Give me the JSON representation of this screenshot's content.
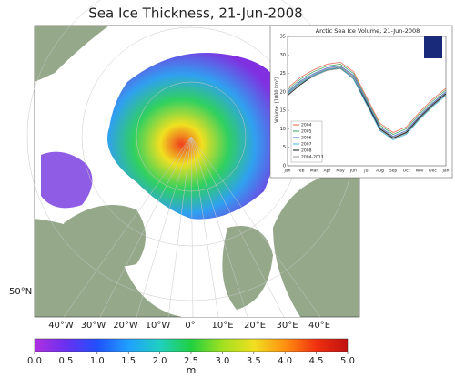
{
  "title": "Sea Ice Thickness, 21-Jun-2008",
  "map": {
    "lon_labels": [
      "40°W",
      "30°W",
      "20°W",
      "10°W",
      "0°",
      "10°E",
      "20°E",
      "30°E",
      "40°E"
    ],
    "lat_label": "50°N"
  },
  "colorbar": {
    "label": "m",
    "lim": [
      0,
      5
    ],
    "ticks": [
      {
        "value": 0,
        "label": "0.0"
      },
      {
        "value": 0.5,
        "label": "0.5"
      },
      {
        "value": 1,
        "label": "1.0"
      },
      {
        "value": 1.5,
        "label": "1.5"
      },
      {
        "value": 2,
        "label": "2.0"
      },
      {
        "value": 2.5,
        "label": "2.5"
      },
      {
        "value": 3,
        "label": "3.0"
      },
      {
        "value": 3.5,
        "label": "3.5"
      },
      {
        "value": 4,
        "label": "4.0"
      },
      {
        "value": 4.5,
        "label": "4.5"
      },
      {
        "value": 5,
        "label": "5.0"
      }
    ]
  },
  "chart_data": {
    "type": "line",
    "title": "Arctic Sea Ice Volume, 21-Jun-2008",
    "ylabel": "Volume, [1000 km³]",
    "categories": [
      "Jan",
      "Feb",
      "Mar",
      "Apr",
      "May",
      "Jun",
      "Jul",
      "Aug",
      "Sep",
      "Oct",
      "Nov",
      "Dec",
      "Jan"
    ],
    "ylim": [
      0,
      35
    ],
    "yticks": [
      0,
      5,
      10,
      15,
      20,
      25,
      30,
      35
    ],
    "legend": "lower left",
    "series": [
      {
        "name": "2004",
        "color": "#e8604c",
        "values": [
          21,
          24,
          26,
          27.5,
          28,
          25.5,
          18.5,
          11.5,
          9,
          10.5,
          14.5,
          18,
          21
        ]
      },
      {
        "name": "2005",
        "color": "#3aa05a",
        "values": [
          20.5,
          23.5,
          25.5,
          27,
          27.5,
          25,
          18,
          11,
          8.5,
          10,
          14,
          17.5,
          20.5
        ]
      },
      {
        "name": "2006",
        "color": "#3a60c8",
        "values": [
          20,
          23,
          25,
          26.5,
          27,
          24.5,
          17.5,
          10.5,
          8,
          9.5,
          13.5,
          17,
          20
        ]
      },
      {
        "name": "2007",
        "color": "#40b8d8",
        "values": [
          19.5,
          22.5,
          24.5,
          26,
          26.5,
          23.5,
          16.5,
          9.5,
          7,
          8.5,
          12.5,
          16,
          19
        ]
      },
      {
        "name": "2008",
        "color": "#111111",
        "values": [
          19,
          22,
          24.5,
          26,
          26.5,
          23.5,
          17,
          10,
          7.5,
          9,
          13,
          16.5,
          19.5
        ]
      },
      {
        "name": "2004-2013",
        "color": "#999999",
        "values": [
          19.5,
          22.5,
          24.5,
          26,
          26.5,
          24,
          17,
          10,
          7.5,
          9,
          13,
          16.5,
          19.5
        ]
      }
    ]
  }
}
